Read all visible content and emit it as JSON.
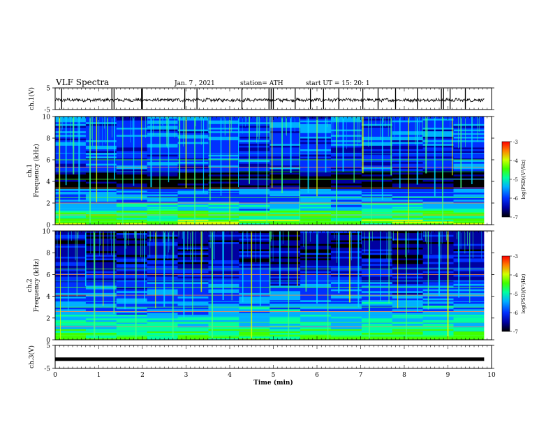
{
  "header": {
    "title": "VLF Spectra",
    "date": "Jan. 7 , 2021",
    "station": "station= ATH",
    "start": "start UT =  15: 20: 1"
  },
  "chart_data": [
    {
      "type": "line",
      "panel": "ch1-waveform",
      "ylabel": "ch.1(V)",
      "ylim": [
        -5,
        5
      ],
      "yticks": [
        "5",
        "-5"
      ],
      "xlim": [
        0,
        10
      ],
      "baseline": -0.6,
      "spike_times": [
        0.15,
        1.3,
        1.35,
        1.98,
        2.0,
        2.97,
        3.25,
        4.28,
        4.9,
        4.95,
        5.0,
        5.5,
        5.85,
        6.15,
        6.5,
        7.05,
        7.4,
        7.8,
        8.3,
        8.85,
        8.9,
        9.05,
        9.4
      ]
    },
    {
      "type": "heatmap",
      "panel": "ch1-spectrogram",
      "ylabel": "ch.1\nFrequency (kHz)",
      "ylim": [
        0,
        10
      ],
      "yticks": [
        "0",
        "2",
        "4",
        "6",
        "8",
        "10"
      ],
      "xlim": [
        0,
        10
      ],
      "colorbar": {
        "label": "log(PSD)(V²/Hz)",
        "range": [
          -7,
          -3
        ],
        "ticks": [
          "-3",
          "-4",
          "-5",
          "-6",
          "-7"
        ]
      },
      "horizontal_lines_khz": [
        0.3,
        0.6,
        0.9,
        1.1,
        1.5,
        2.0,
        2.5,
        3.0,
        3.4,
        4.2,
        4.9,
        5.3,
        6.0,
        6.6
      ],
      "sferic_times": [
        0.1,
        0.25,
        0.42,
        0.55,
        0.8,
        0.95,
        1.2,
        1.36,
        1.55,
        1.8,
        1.98,
        2.2,
        2.4,
        2.6,
        2.85,
        3.0,
        3.2,
        3.4,
        3.55,
        3.8,
        4.0,
        4.2,
        4.45,
        4.65,
        4.85,
        4.97,
        5.2,
        5.4,
        5.6,
        5.8,
        6.0,
        6.2,
        6.45,
        6.6,
        6.85,
        7.05,
        7.25,
        7.5,
        7.7,
        7.9,
        8.1,
        8.3,
        8.5,
        8.7,
        8.88,
        9.1,
        9.3,
        9.55
      ]
    },
    {
      "type": "heatmap",
      "panel": "ch2-spectrogram",
      "ylabel": "ch.2\nFrequency (kHz)",
      "ylim": [
        0,
        10
      ],
      "yticks": [
        "0",
        "2",
        "4",
        "6",
        "8",
        "10"
      ],
      "xlim": [
        0,
        10
      ],
      "colorbar": {
        "label": "log(PSD)(V²/Hz)",
        "range": [
          -7,
          -3
        ],
        "ticks": [
          "-3",
          "-4",
          "-5",
          "-6",
          "-7"
        ]
      },
      "horizontal_lines_khz": [
        0.4,
        0.8,
        1.2,
        1.6,
        2.1,
        2.6,
        3.0,
        3.5,
        4.1,
        4.8,
        5.4,
        6.0,
        6.5
      ],
      "sferic_times": [
        0.12,
        0.3,
        0.5,
        0.7,
        0.9,
        1.1,
        1.35,
        1.6,
        1.85,
        2.05,
        2.3,
        2.5,
        2.7,
        2.95,
        3.15,
        3.35,
        3.6,
        3.85,
        4.05,
        4.3,
        4.5,
        4.7,
        4.92,
        5.15,
        5.35,
        5.55,
        5.75,
        6.0,
        6.25,
        6.5,
        6.75,
        6.95,
        7.2,
        7.45,
        7.65,
        7.85,
        8.05,
        8.3,
        8.55,
        8.8,
        9.0,
        9.25,
        9.5
      ]
    },
    {
      "type": "line",
      "panel": "ch3-waveform",
      "ylabel": "ch.3(V)",
      "ylim": [
        -5,
        5
      ],
      "yticks": [
        "5",
        "-5"
      ],
      "xlim": [
        0,
        10
      ],
      "baseline": -1.0,
      "xlabel": "Time (min)",
      "xticks": [
        "0",
        "1",
        "2",
        "3",
        "4",
        "5",
        "6",
        "7",
        "8",
        "9",
        "10"
      ]
    }
  ],
  "colors": {
    "background_dark": "#000014",
    "colormap": [
      "#000000",
      "#0000a0",
      "#0030ff",
      "#00b0ff",
      "#00ffa0",
      "#40ff00",
      "#d0ff00",
      "#ff8000",
      "#ff0000"
    ]
  }
}
